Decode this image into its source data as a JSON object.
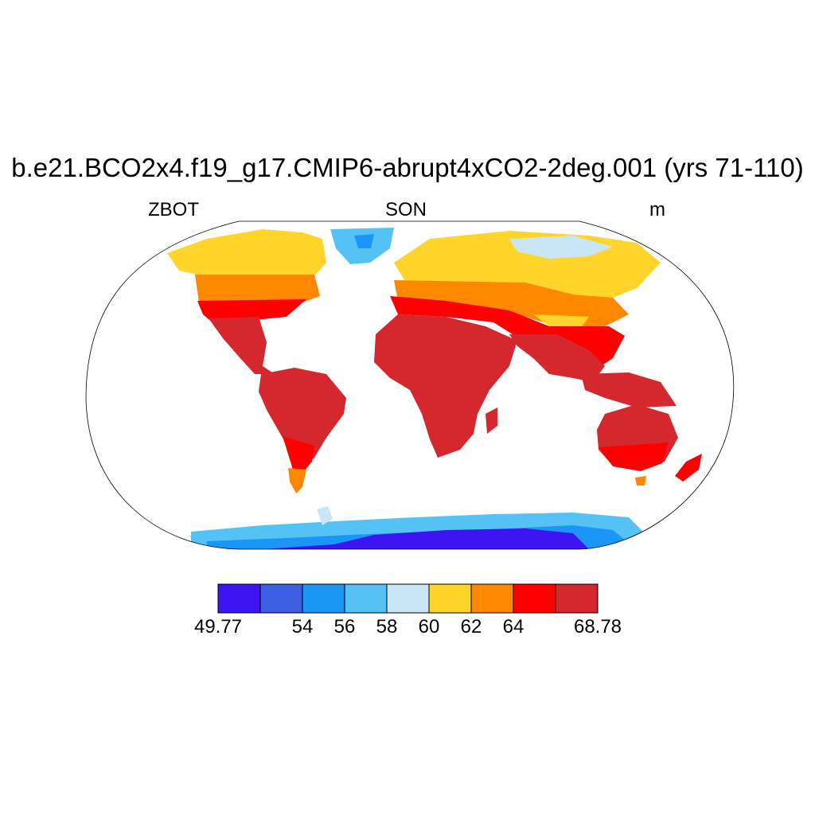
{
  "title": "b.e21.BCO2x4.f19_g17.CMIP6-abrupt4xCO2-2deg.001 (yrs 71-110)",
  "left_label": "ZBOT",
  "center_label": "SON",
  "right_label": "m",
  "colorbar": {
    "colors": [
      "#3f14f2",
      "#3c5ee0",
      "#1a96f7",
      "#54c2f5",
      "#c9e6f7",
      "#ffd42b",
      "#ff8800",
      "#ff0000",
      "#d4282e"
    ],
    "labels": [
      "49.77",
      "",
      "54",
      "56",
      "58",
      "60",
      "62",
      "64",
      "",
      "68.78"
    ],
    "min": 49.77,
    "max": 68.78
  }
}
